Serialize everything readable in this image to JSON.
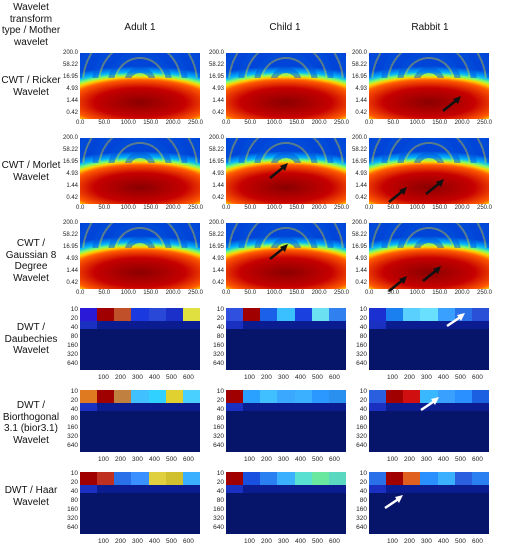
{
  "header": {
    "corner_label": "Wavelet transform type / Mother wavelet",
    "columns": [
      "Adult 1",
      "Child 1",
      "Rabbit 1"
    ]
  },
  "rows": [
    {
      "label": "CWT / Ricker Wavelet"
    },
    {
      "label": "CWT / Morlet Wavelet"
    },
    {
      "label": "CWT / Gaussian 8 Degree Wavelet"
    },
    {
      "label": "DWT / Daubechies Wavelet"
    },
    {
      "label": "DWT / Biorthogonal 3.1 (bior3.1) Wavelet"
    },
    {
      "label": "DWT / Haar Wavelet"
    }
  ],
  "cwt_axis": {
    "y_ticks": [
      "200.0",
      "58.22",
      "16.95",
      "4.93",
      "1.44",
      "0.42"
    ],
    "x_ticks": [
      "0.0",
      "50.0",
      "100.0",
      "150.0",
      "200.0",
      "250.0"
    ]
  },
  "dwt_axis": {
    "y_ticks": [
      "10",
      "20",
      "40",
      "80",
      "160",
      "320",
      "640"
    ],
    "x_ticks": [
      "100",
      "200",
      "300",
      "400",
      "500",
      "600"
    ]
  },
  "colors": {
    "dwt_bg": "#06146a",
    "arrow_black": "#111111",
    "arrow_white": "#ffffff"
  },
  "dwt_top_rows": {
    "daubechies_adult": [
      "#2a1ad8",
      "#a00000",
      "#c0502a",
      "#1a3ae0",
      "#2a48d8",
      "#1a30c8",
      "#e0e040"
    ],
    "daubechies_child": [
      "#3050e0",
      "#a00000",
      "#1a60e8",
      "#3ac0ff",
      "#1a40e0",
      "#6ae0f0",
      "#3080f0"
    ],
    "daubechies_rabbit": [
      "#1a30d0",
      "#1a80f0",
      "#5ad0ff",
      "#6ae0ff",
      "#3aa0ff",
      "#2a70e8",
      "#2a50d8"
    ],
    "bior_adult": [
      "#e07a20",
      "#a00000",
      "#c08040",
      "#40c0ff",
      "#30d0ff",
      "#e0d030",
      "#4ad0ff"
    ],
    "bior_child": [
      "#a00000",
      "#2aa0ff",
      "#40c0ff",
      "#3aa8ff",
      "#3ab0ff",
      "#2a98ff",
      "#2a90f0"
    ],
    "bior_rabbit": [
      "#2a60e0",
      "#a00000",
      "#d01010",
      "#3ab8ff",
      "#3aa0ff",
      "#2a90ff",
      "#1a60e0"
    ],
    "haar_adult": [
      "#a00000",
      "#c03020",
      "#2a70e8",
      "#3a90ff",
      "#e0d040",
      "#d0c030",
      "#3ab0ff"
    ],
    "haar_child": [
      "#a00000",
      "#1a50e0",
      "#2a80f0",
      "#3ab0ff",
      "#5ae0d0",
      "#6ae8a0",
      "#5ad8c0"
    ],
    "haar_rabbit": [
      "#2a70e8",
      "#a00000",
      "#e06020",
      "#2a90ff",
      "#3ab0ff",
      "#2a60e0",
      "#2a80f0"
    ]
  }
}
